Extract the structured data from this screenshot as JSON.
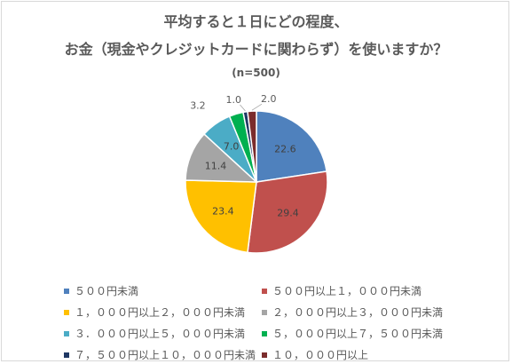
{
  "chart_data": {
    "type": "pie",
    "title_line1": "平均すると１日にどの程度、",
    "title_line2": "お金（現金やクレジットカードに関わらず）を使いますか？",
    "subtitle": "(n=500)",
    "categories": [
      "５００円未満",
      "５００円以上１，０００円未満",
      "１，０００円以上２，０００円未満",
      "２，０００円以上３，０００円未満",
      "３．０００円以上５，０００円未満",
      "５，０００円以上７，５００円未満",
      "７，５００円以上１０，０００円未満",
      "１０，０００円以上"
    ],
    "values": [
      22.6,
      29.4,
      23.4,
      11.4,
      7.0,
      3.2,
      1.0,
      2.0
    ],
    "value_labels": [
      "22.6",
      "29.4",
      "23.4",
      "11.4",
      "7.0",
      "3.2",
      "1.0",
      "2.0"
    ],
    "colors": [
      "#4f81bd",
      "#c0504d",
      "#ffc000",
      "#a5a5a5",
      "#4bacc6",
      "#00b050",
      "#1f3864",
      "#7b2c2c"
    ],
    "legend_position": "bottom"
  }
}
